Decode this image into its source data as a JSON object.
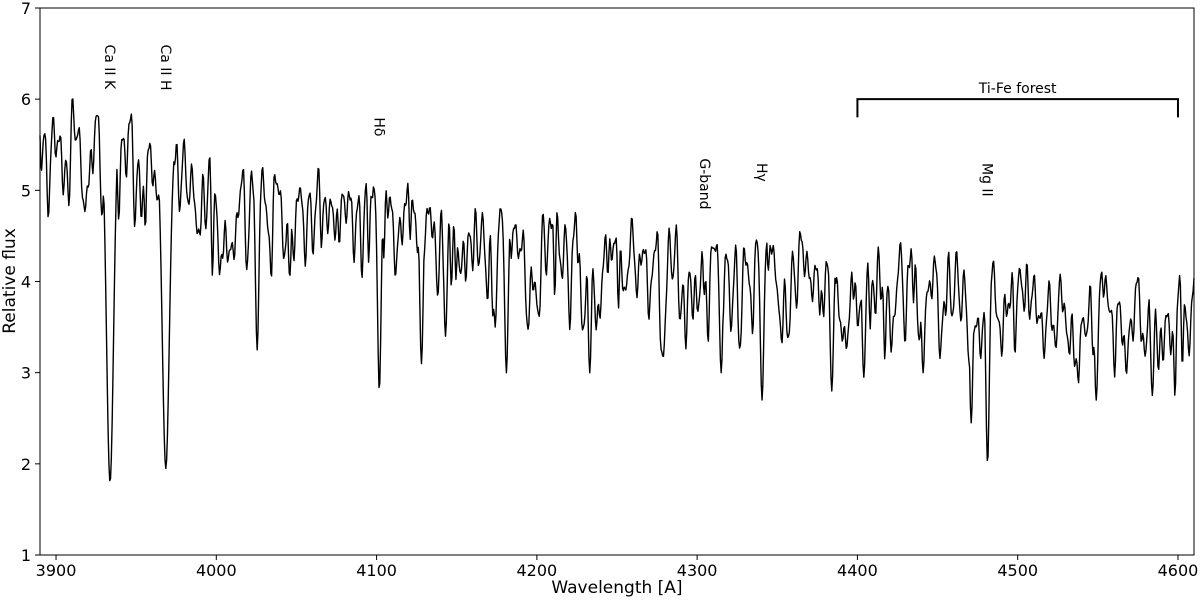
{
  "chart_data": {
    "type": "line",
    "title": "",
    "xlabel": "Wavelength [A]",
    "ylabel": "Relative flux",
    "xlim": [
      3890,
      4610
    ],
    "ylim": [
      1,
      7
    ],
    "xticks": [
      3900,
      4000,
      4100,
      4200,
      4300,
      4400,
      4500,
      4600
    ],
    "xtick_labels": [
      "3900",
      "4000",
      "4100",
      "4200",
      "4300",
      "4400",
      "4500",
      "4600"
    ],
    "yticks": [
      1,
      2,
      3,
      4,
      5,
      6,
      7
    ],
    "ytick_labels": [
      "1",
      "2",
      "3",
      "4",
      "5",
      "6",
      "7"
    ],
    "grid": false,
    "line_color": "#000000",
    "continuum": [
      [
        3890,
        6.0
      ],
      [
        3940,
        5.8
      ],
      [
        4000,
        5.35
      ],
      [
        4100,
        5.05
      ],
      [
        4200,
        4.75
      ],
      [
        4300,
        4.55
      ],
      [
        4400,
        4.35
      ],
      [
        4500,
        4.2
      ],
      [
        4610,
        4.0
      ]
    ],
    "absorption_lines": [
      {
        "x": 3933.7,
        "min": 1.8
      },
      {
        "x": 3968.5,
        "min": 1.95
      },
      {
        "x": 4025.5,
        "min": 3.25
      },
      {
        "x": 4045.8,
        "min": 4.05
      },
      {
        "x": 4101.7,
        "min": 2.8
      },
      {
        "x": 4128,
        "min": 3.1
      },
      {
        "x": 4143,
        "min": 3.4
      },
      {
        "x": 4174,
        "min": 3.5
      },
      {
        "x": 4181,
        "min": 3.0
      },
      {
        "x": 4233,
        "min": 3.0
      },
      {
        "x": 4315,
        "min": 3.0
      },
      {
        "x": 4340.5,
        "min": 2.7
      },
      {
        "x": 4384,
        "min": 2.8
      },
      {
        "x": 4404,
        "min": 2.95
      },
      {
        "x": 4441,
        "min": 3.0
      },
      {
        "x": 4471,
        "min": 2.45
      },
      {
        "x": 4481.2,
        "min": 2.0
      },
      {
        "x": 4549,
        "min": 2.7
      },
      {
        "x": 4584,
        "min": 2.75
      }
    ],
    "annotations": [
      {
        "text": "Ca II K",
        "x": 3933.7,
        "y": 6.6,
        "rotation": 90
      },
      {
        "text": "Ca II H",
        "x": 3968.5,
        "y": 6.6,
        "rotation": 90
      },
      {
        "text": "Hδ",
        "x": 4101.7,
        "y": 5.8,
        "rotation": 90
      },
      {
        "text": "G-band",
        "x": 4305,
        "y": 5.35,
        "rotation": 90
      },
      {
        "text": "Hγ",
        "x": 4340.5,
        "y": 5.3,
        "rotation": 90
      },
      {
        "text": "Mg II",
        "x": 4481.2,
        "y": 5.3,
        "rotation": 90
      }
    ],
    "bracket": {
      "text": "Ti-Fe forest",
      "x_start": 4400,
      "x_end": 4600,
      "y": 6.0,
      "y_bottom": 5.8
    }
  }
}
